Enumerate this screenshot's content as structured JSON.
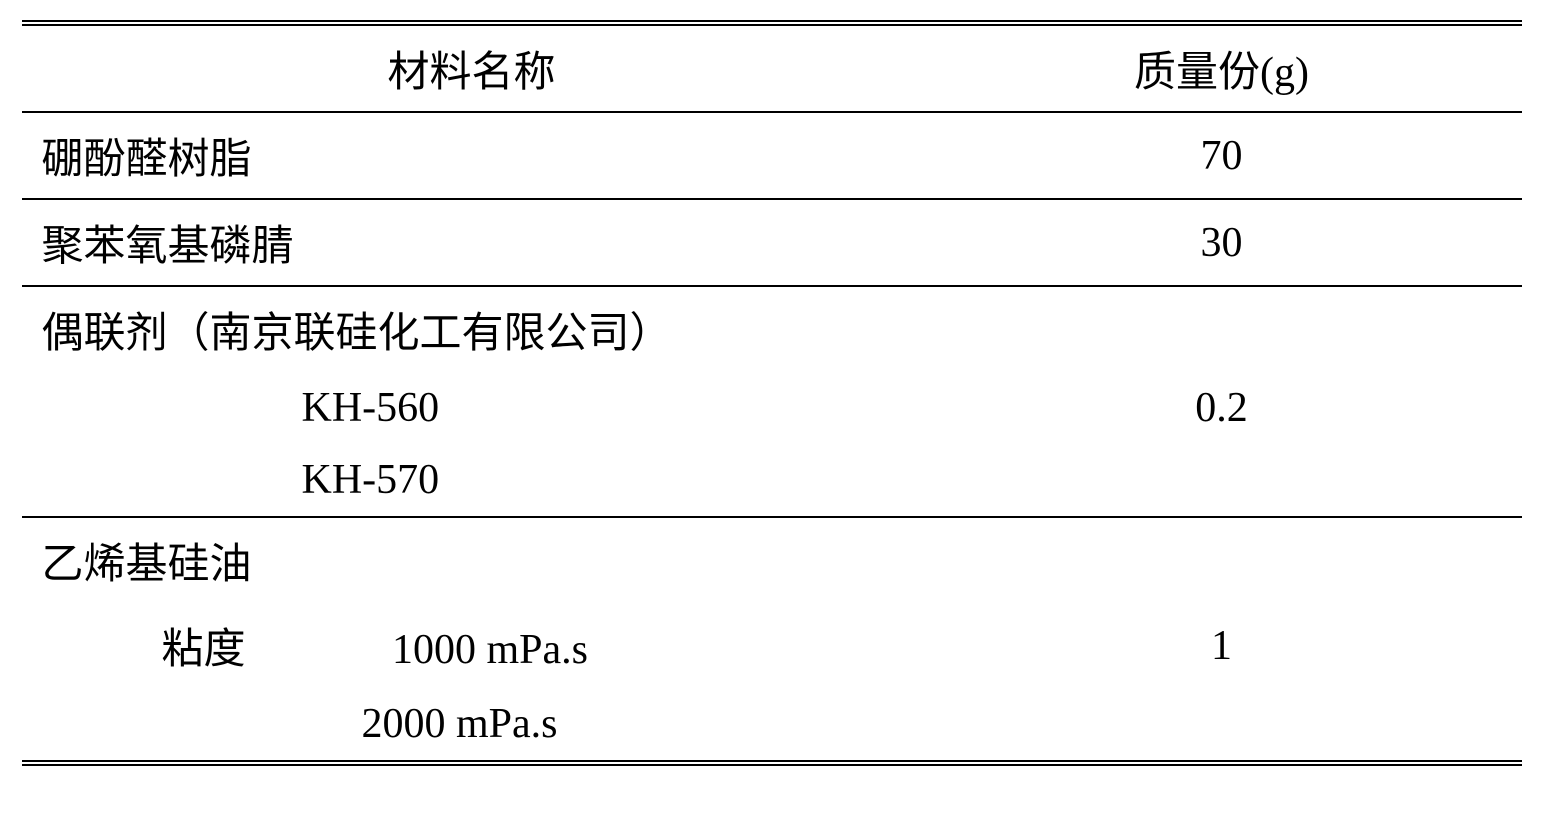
{
  "table": {
    "header": {
      "col1": "材料名称",
      "col2": "质量份(g)"
    },
    "rows": {
      "r1": {
        "name": "硼酚醛树脂",
        "value": "70"
      },
      "r2": {
        "name": "聚苯氧基磷腈",
        "value": "30"
      },
      "r3": {
        "name": "偶联剂（南京联硅化工有限公司）",
        "value": ""
      },
      "r4": {
        "name": "KH-560",
        "value": "0.2"
      },
      "r5": {
        "name": "KH-570",
        "value": ""
      },
      "r6": {
        "name": "乙烯基硅油",
        "value": ""
      },
      "r7": {
        "label": "粘度",
        "visc": "1000 mPa.s",
        "value": "1"
      },
      "r8": {
        "visc": "2000 mPa.s",
        "value": ""
      }
    }
  }
}
